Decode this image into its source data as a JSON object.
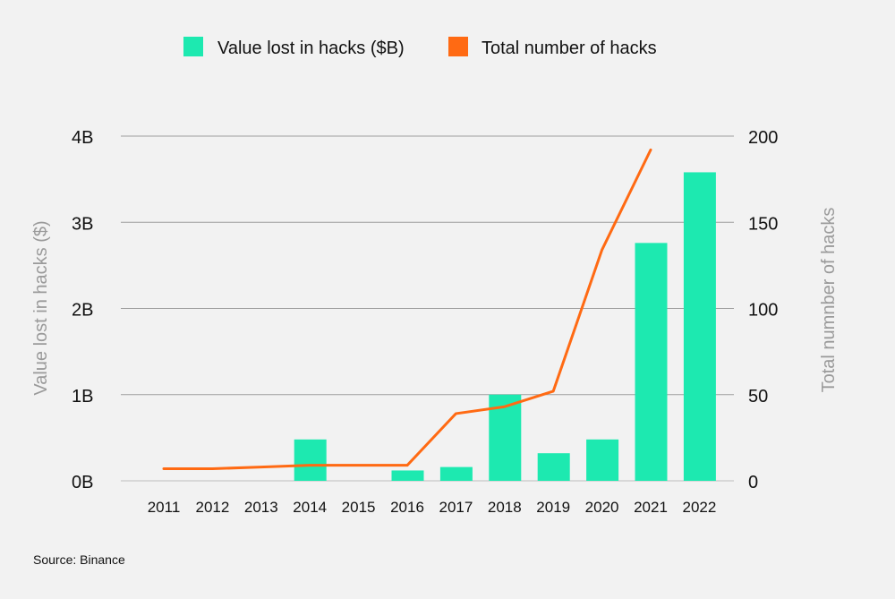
{
  "chart_data": {
    "type": "bar",
    "categories": [
      "2011",
      "2012",
      "2013",
      "2014",
      "2015",
      "2016",
      "2017",
      "2018",
      "2019",
      "2020",
      "2021",
      "2022"
    ],
    "series": [
      {
        "name": "Value lost in hacks ($B)",
        "type": "bar",
        "axis": "left",
        "color": "#1de9b0",
        "values": [
          0,
          0,
          0,
          0.48,
          0,
          0.12,
          0.16,
          1.0,
          0.32,
          0.48,
          2.76,
          3.58
        ]
      },
      {
        "name": "Total number of hacks",
        "type": "line",
        "axis": "right",
        "color": "#ff6a13",
        "values": [
          7,
          7,
          8,
          9,
          9,
          9,
          39,
          43,
          52,
          134,
          192,
          null
        ]
      }
    ],
    "ylabel_left": "Value lost in hacks ($)",
    "ylabel_right": "Total numnber of hacks",
    "ylim_left": [
      0,
      4
    ],
    "ylim_right": [
      0,
      200
    ],
    "yticks_left": [
      "0B",
      "1B",
      "2B",
      "3B",
      "4B"
    ],
    "yticks_right": [
      "0",
      "50",
      "100",
      "150",
      "200"
    ],
    "grid": true,
    "legend_position": "top-center"
  },
  "source": "Source: Binance"
}
